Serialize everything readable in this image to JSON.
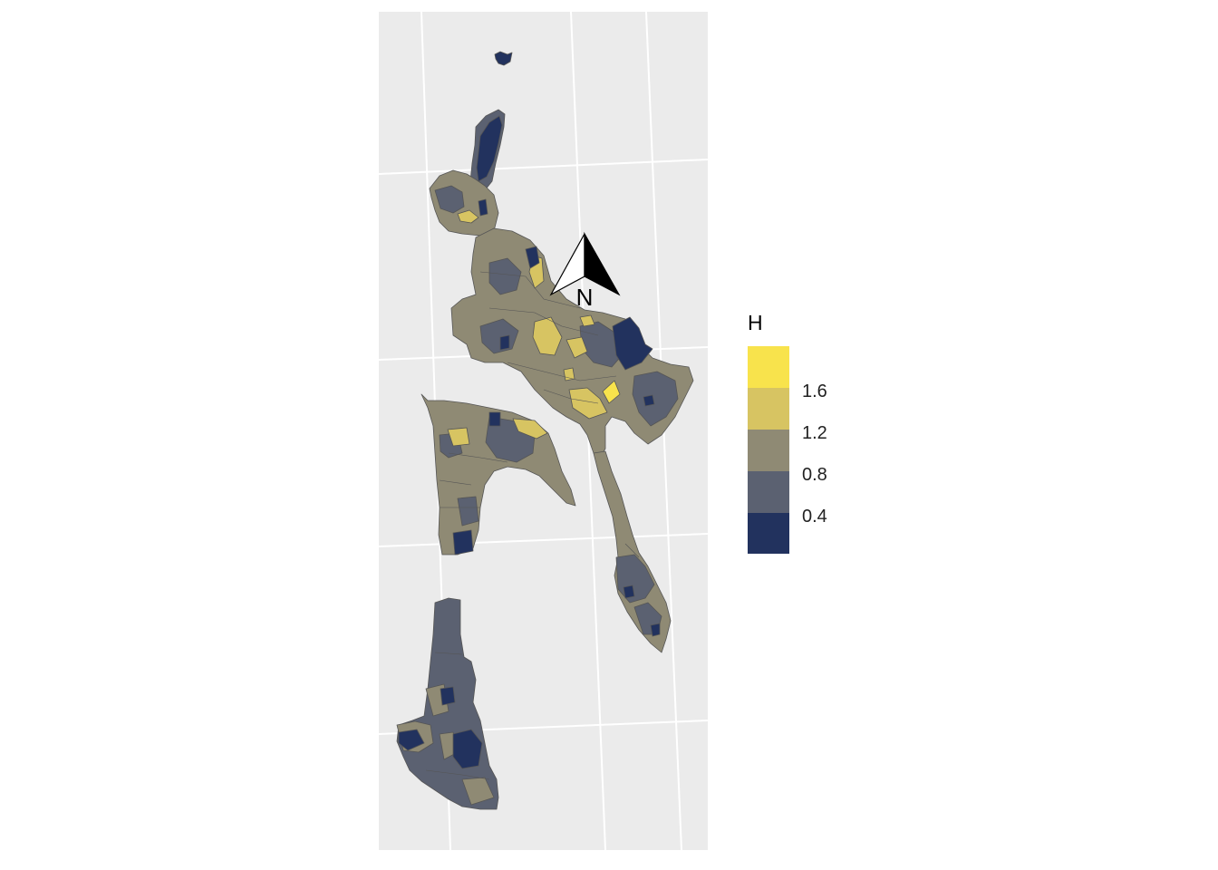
{
  "legend": {
    "title": "H",
    "labels": [
      "1.6",
      "1.2",
      "0.8",
      "0.4"
    ],
    "colors": [
      "#22325e",
      "#5b6171",
      "#8f8a74",
      "#d7c462",
      "#f8e34c"
    ]
  },
  "north_arrow": {
    "label": "N"
  },
  "map": {
    "panel_color": "#ebebeb",
    "grid_color": "#ffffff",
    "border_color": "#555555"
  }
}
